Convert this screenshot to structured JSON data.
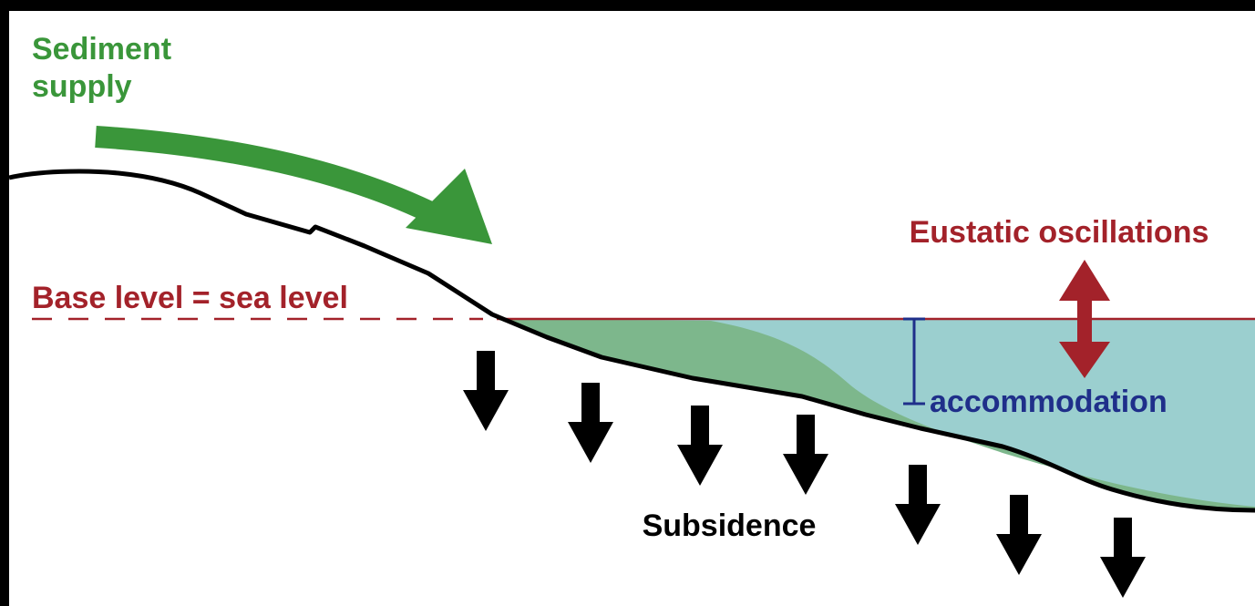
{
  "sediment_supply": [
    "Sediment",
    "supply"
  ],
  "eustatic": "Eustatic oscillations",
  "base_level": "Base level = sea level",
  "accommodation": "accommodation",
  "subsidence": "Subsidence"
}
